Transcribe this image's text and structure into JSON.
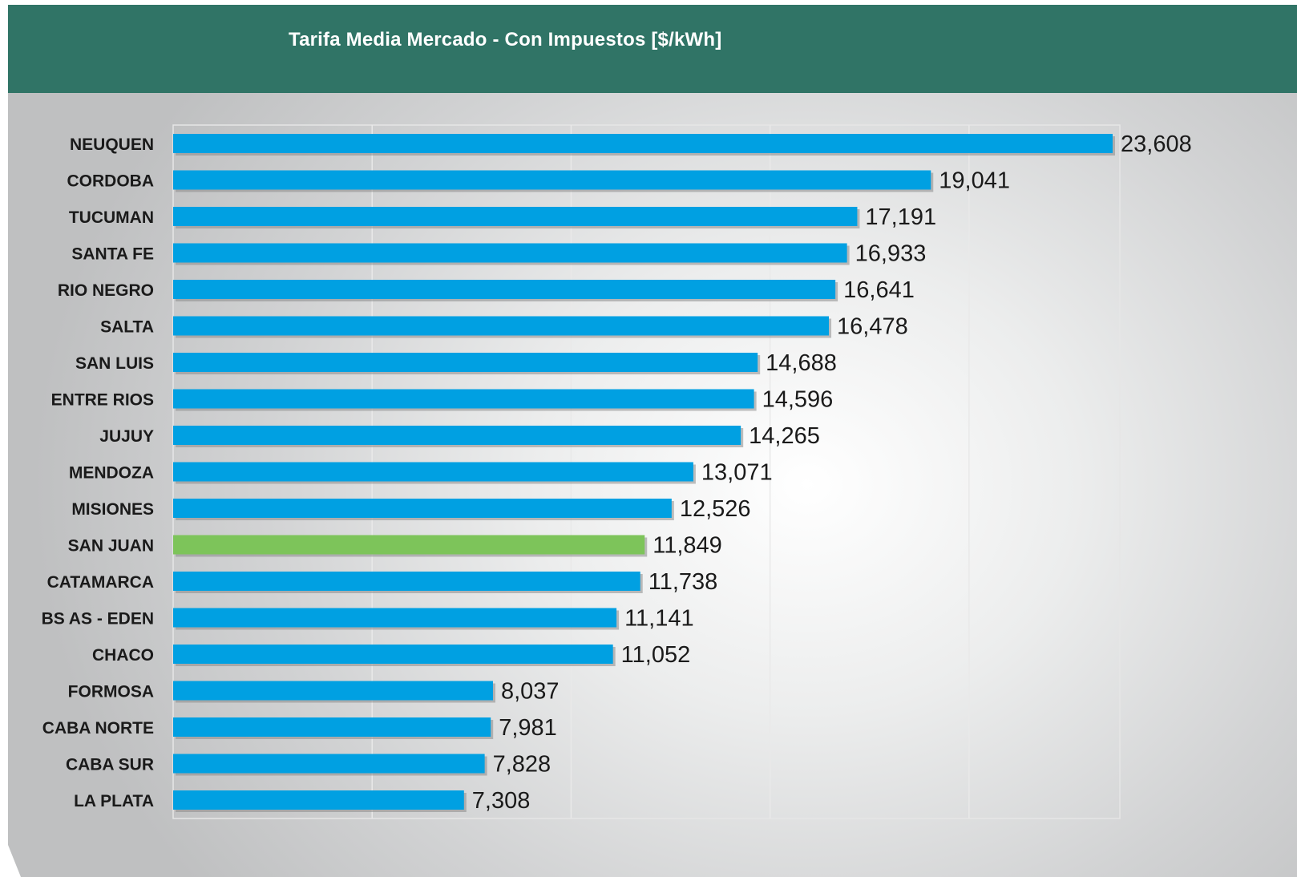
{
  "chart_data": {
    "type": "bar",
    "orientation": "horizontal",
    "title": "Tarifa Media Mercado - Con Impuestos [$/kWh]",
    "xlabel": "",
    "ylabel": "",
    "categories": [
      "NEUQUEN",
      "CORDOBA",
      "TUCUMAN",
      "SANTA FE",
      "RIO NEGRO",
      "SALTA",
      "SAN LUIS",
      "ENTRE RIOS",
      "JUJUY",
      "MENDOZA",
      "MISIONES",
      "SAN JUAN",
      "CATAMARCA",
      "BS AS - EDEN",
      "CHACO",
      "FORMOSA",
      "CABA NORTE",
      "CABA SUR",
      "LA PLATA"
    ],
    "values": [
      23.608,
      19.041,
      17.191,
      16.933,
      16.641,
      16.478,
      14.688,
      14.596,
      14.265,
      13.071,
      12.526,
      11.849,
      11.738,
      11.141,
      11.052,
      8.037,
      7.981,
      7.828,
      7.308
    ],
    "value_labels": [
      "23,608",
      "19,041",
      "17,191",
      "16,933",
      "16,641",
      "16,478",
      "14,688",
      "14,596",
      "14,265",
      "13,071",
      "12,526",
      "11,849",
      "11,738",
      "11,141",
      "11,052",
      "8,037",
      "7,981",
      "7,828",
      "7,308"
    ],
    "xlim": [
      0,
      25
    ],
    "grid": true,
    "legend": "none",
    "bar_color": "#00a0e2",
    "highlight_category": "SAN JUAN",
    "highlight_color": "#7dc45a"
  },
  "colors": {
    "header": "#307466",
    "title_text": "#ffffff",
    "label_text": "#1a1a1a"
  }
}
